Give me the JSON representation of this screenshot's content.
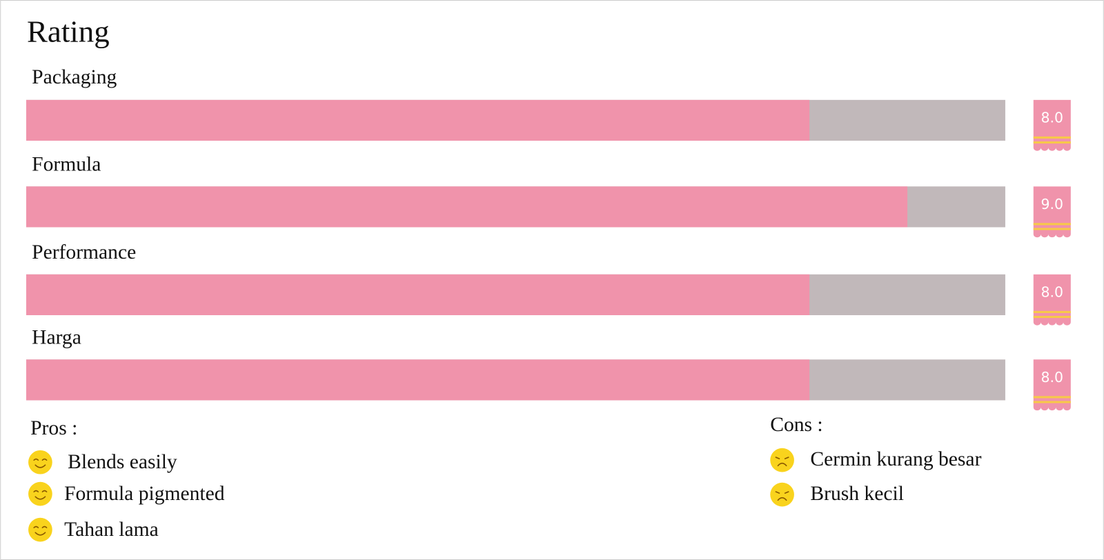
{
  "chart_data": {
    "type": "bar",
    "orientation": "horizontal",
    "title": "Rating",
    "categories": [
      "Packaging",
      "Formula",
      "Performance",
      "Harga"
    ],
    "values": [
      8,
      9,
      8,
      8
    ],
    "value_labels": [
      "8.0",
      "9.0",
      "8.0",
      "8.0"
    ],
    "xlim": [
      0,
      10
    ],
    "color": "#f093ab",
    "track_color": "#c1b8ba"
  },
  "pros": {
    "title": "Pros :",
    "items": [
      "Blends easily",
      "Formula pigmented",
      "Tahan lama"
    ]
  },
  "cons": {
    "title": "Cons :",
    "items": [
      "Cermin kurang besar",
      "Brush kecil"
    ]
  }
}
